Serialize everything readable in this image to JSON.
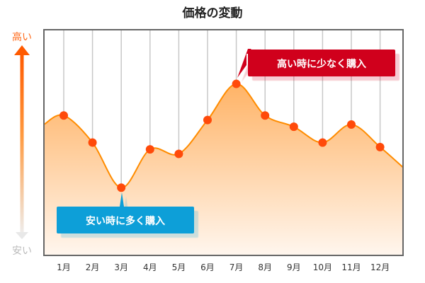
{
  "chart_data": {
    "type": "area",
    "title": "価格の変動",
    "xlabel": "",
    "ylabel_high": "高い",
    "ylabel_low": "安い",
    "categories": [
      "1月",
      "2月",
      "3月",
      "4月",
      "5月",
      "6月",
      "7月",
      "8月",
      "9月",
      "10月",
      "11月",
      "12月"
    ],
    "values": [
      62,
      50,
      30,
      47,
      45,
      60,
      76,
      62,
      57,
      50,
      58,
      48
    ],
    "start_value": 58,
    "end_value": 39,
    "ylim": [
      0,
      100
    ],
    "grid": "vertical",
    "annotations": [
      {
        "text": "高い時に少なく購入",
        "month": "7月",
        "color": "#d0021b"
      },
      {
        "text": "安い時に多く購入",
        "month": "3月",
        "color": "#0a9fd8"
      }
    ],
    "colors": {
      "line": "#ff8c00",
      "marker": "#ff4a0a",
      "fill_top": "#ffb366",
      "fill_bottom": "#fff4ea",
      "high": "#ff6a1a",
      "low": "#bbbbbb"
    }
  }
}
